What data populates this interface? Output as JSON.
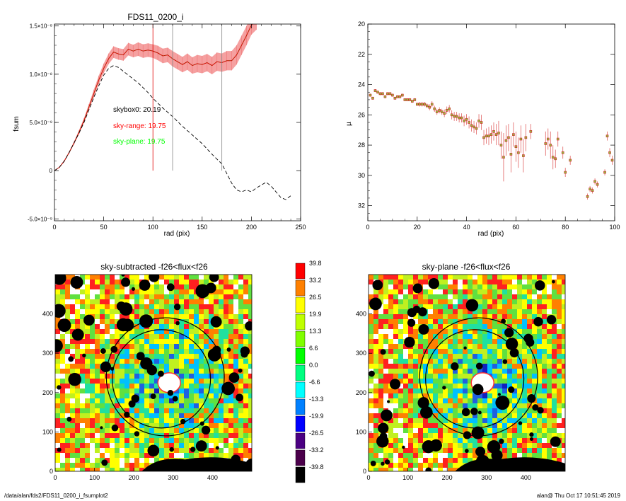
{
  "chart_data": [
    {
      "type": "line",
      "title": "FDS11_0200_i",
      "xlabel": "rad (pix)",
      "ylabel": "fsum",
      "xlim": [
        0,
        250
      ],
      "ylim": [
        -5.2e-09,
        1.52e-08
      ],
      "xticks": [
        0,
        50,
        100,
        150,
        200,
        250
      ],
      "yticks": [
        {
          "value": 1.5e-08,
          "label": "1.5×10⁻⁸"
        },
        {
          "value": 1e-08,
          "label": "1.0×10⁻⁸"
        },
        {
          "value": 5e-09,
          "label": "5.0×10⁻⁹"
        },
        {
          "value": 0,
          "label": "0"
        },
        {
          "value": -5e-09,
          "label": "-5.0×10⁻⁹"
        }
      ],
      "vlines": [
        100,
        120,
        170
      ],
      "annotations": [
        {
          "text": "skybox0: 20.19",
          "color": "#000000"
        },
        {
          "text": "sky-range: 19.75",
          "color": "#ff0000"
        },
        {
          "text": "sky-plane: 19.75",
          "color": "#00ff00"
        }
      ],
      "series": [
        {
          "style": "red-with-pink-errorband",
          "x": [
            0,
            5,
            10,
            15,
            20,
            25,
            30,
            35,
            40,
            45,
            50,
            55,
            60,
            65,
            70,
            75,
            80,
            85,
            90,
            95,
            100,
            105,
            110,
            115,
            120,
            125,
            130,
            135,
            140,
            145,
            150,
            155,
            160,
            165,
            170,
            175,
            180,
            185,
            190,
            195,
            200,
            205
          ],
          "y": [
            0,
            3.5e-10,
            1e-09,
            1.9e-09,
            2.9e-09,
            4e-09,
            5.2e-09,
            6.6e-09,
            8e-09,
            9.4e-09,
            1.06e-08,
            1.16e-08,
            1.23e-08,
            1.21e-08,
            1.2e-08,
            1.26e-08,
            1.24e-08,
            1.26e-08,
            1.24e-08,
            1.25e-08,
            1.24e-08,
            1.22e-08,
            1.19e-08,
            1.2e-08,
            1.16e-08,
            1.13e-08,
            1.1e-08,
            1.13e-08,
            1.09e-08,
            1.11e-08,
            1.1e-08,
            1.12e-08,
            1.09e-08,
            1.13e-08,
            1.12e-08,
            1.14e-08,
            1.14e-08,
            1.2e-08,
            1.3e-08,
            1.4e-08,
            1.51e-08,
            1.56e-08
          ],
          "err": [
            0,
            5e-11,
            1e-10,
            1e-10,
            1.5e-10,
            2e-10,
            2.5e-10,
            3e-10,
            4e-10,
            4.5e-10,
            5e-10,
            5.5e-10,
            6e-10,
            6e-10,
            6e-10,
            6.5e-10,
            6.5e-10,
            7e-10,
            7e-10,
            7e-10,
            7e-10,
            7.5e-10,
            7.5e-10,
            7.5e-10,
            8e-10,
            8e-10,
            8e-10,
            8.5e-10,
            8.5e-10,
            9e-10,
            9e-10,
            9e-10,
            9e-10,
            9.5e-10,
            9.5e-10,
            1e-09,
            1e-09,
            1e-09,
            1e-09,
            1e-09,
            1e-09,
            1e-09
          ]
        },
        {
          "style": "black-dashed",
          "x": [
            0,
            5,
            10,
            15,
            20,
            25,
            30,
            35,
            40,
            45,
            50,
            55,
            60,
            65,
            70,
            75,
            80,
            85,
            90,
            95,
            100,
            110,
            120,
            130,
            140,
            150,
            160,
            170,
            175,
            180,
            185,
            190,
            195,
            200,
            205,
            210,
            215,
            220,
            225,
            230,
            235,
            240
          ],
          "y": [
            0,
            3.5e-10,
            1e-09,
            1.9e-09,
            2.9e-09,
            3.9e-09,
            5e-09,
            6.3e-09,
            7.6e-09,
            8.8e-09,
            9.9e-09,
            1.06e-08,
            1.09e-08,
            1.07e-08,
            1.03e-08,
            9.9e-09,
            9.5e-09,
            9.1e-09,
            8.6e-09,
            8.1e-09,
            7.5e-09,
            6.5e-09,
            5.6e-09,
            4.6e-09,
            3.7e-09,
            2.8e-09,
            1.7e-09,
            7e-10,
            -3e-10,
            -1.3e-09,
            -2e-09,
            -2.2e-09,
            -2e-09,
            -2.2e-09,
            -1.8e-09,
            -1.5e-09,
            -1.2e-09,
            -1.6e-09,
            -2.2e-09,
            -2.8e-09,
            -3e-09,
            -2.6e-09
          ]
        }
      ]
    },
    {
      "type": "scatter",
      "xlabel": "rad (pix)",
      "ylabel": "µ",
      "xlim": [
        0,
        100
      ],
      "ylim": [
        20,
        33
      ],
      "y_inverted": true,
      "xticks": [
        0,
        20,
        40,
        60,
        80,
        100
      ],
      "yticks": [
        20,
        22,
        24,
        26,
        28,
        30,
        32
      ],
      "points_x": [
        1,
        2,
        3,
        4,
        5,
        6,
        7,
        8,
        9,
        10,
        11,
        12,
        13,
        14,
        15,
        16,
        17,
        18,
        19,
        20,
        21,
        22,
        23,
        24,
        25,
        26,
        27,
        28,
        29,
        30,
        31,
        32,
        33,
        34,
        35,
        36,
        37,
        38,
        39,
        40,
        41,
        42,
        43,
        44,
        45,
        46,
        47,
        48,
        49,
        50,
        51,
        52,
        53,
        54,
        55,
        56,
        57,
        58,
        59,
        60,
        61,
        62,
        63,
        64,
        66,
        72,
        73,
        74,
        75,
        76,
        77,
        79,
        80,
        82,
        89,
        90,
        91,
        92,
        93,
        96,
        97,
        98,
        99
      ],
      "points_y": [
        24.7,
        24.9,
        24.4,
        24.5,
        24.6,
        24.6,
        24.8,
        24.6,
        24.6,
        24.7,
        24.9,
        24.8,
        24.8,
        24.7,
        25.0,
        25.0,
        25.0,
        25.1,
        25.0,
        25.3,
        25.3,
        25.3,
        25.3,
        25.4,
        25.5,
        25.3,
        25.6,
        25.8,
        25.7,
        25.8,
        25.9,
        25.7,
        25.6,
        26.0,
        26.1,
        26.1,
        26.2,
        26.2,
        26.4,
        26.3,
        26.5,
        26.7,
        26.8,
        26.9,
        26.4,
        26.5,
        27.5,
        27.4,
        27.4,
        27.3,
        27.1,
        27.3,
        27.2,
        28.0,
        28.8,
        27.7,
        27.5,
        28.6,
        27.3,
        28.1,
        28.5,
        27.6,
        28.7,
        27.5,
        27.1,
        27.9,
        27.6,
        28.0,
        28.8,
        28.9,
        27.6,
        28.5,
        29.8,
        29.0,
        31.4,
        30.9,
        31.0,
        30.4,
        30.6,
        29.8,
        27.4,
        28.5,
        29.0
      ],
      "errors_y": [
        0.1,
        0.1,
        0.1,
        0.1,
        0.1,
        0.1,
        0.1,
        0.1,
        0.1,
        0.1,
        0.1,
        0.1,
        0.1,
        0.1,
        0.1,
        0.1,
        0.1,
        0.1,
        0.1,
        0.1,
        0.15,
        0.15,
        0.15,
        0.15,
        0.2,
        0.2,
        0.2,
        0.2,
        0.2,
        0.2,
        0.25,
        0.25,
        0.25,
        0.3,
        0.3,
        0.3,
        0.3,
        0.3,
        0.35,
        0.35,
        0.4,
        0.4,
        0.4,
        0.4,
        0.45,
        0.5,
        0.5,
        0.5,
        0.6,
        0.6,
        0.6,
        0.7,
        0.8,
        0.9,
        1.6,
        1.0,
        0.9,
        1.2,
        0.8,
        1.0,
        1.0,
        0.9,
        1.1,
        0.9,
        0.5,
        0.8,
        0.7,
        0.9,
        0.8,
        0.6,
        0.5,
        0.4,
        0.3,
        0.3,
        0.2,
        0.2,
        0.2,
        0.2,
        0.2,
        0.2,
        0.3,
        0.3,
        0.3
      ]
    },
    {
      "type": "heatmap",
      "title": "sky-subtracted -f26<flux<f26",
      "xlim": [
        0,
        500
      ],
      "ylim": [
        0,
        500
      ],
      "xticks": [
        0,
        100,
        200,
        300,
        400
      ],
      "yticks": [
        0,
        100,
        200,
        300,
        400
      ],
      "ellipses": [
        {
          "cx": 280,
          "cy": 240,
          "r": 150
        },
        {
          "cx": 270,
          "cy": 235,
          "r": 125
        }
      ]
    },
    {
      "type": "heatmap",
      "title": "sky-plane -f26<flux<f26",
      "xlim": [
        0,
        500
      ],
      "ylim": [
        0,
        500
      ],
      "xticks": [
        0,
        100,
        200,
        300,
        400
      ],
      "yticks": [
        0,
        100,
        200,
        300,
        400
      ],
      "ellipses": [
        {
          "cx": 280,
          "cy": 240,
          "r": 150
        },
        {
          "cx": 270,
          "cy": 235,
          "r": 125
        }
      ]
    }
  ],
  "colorbar": {
    "labels": [
      "39.8",
      "33.2",
      "26.5",
      "19.9",
      "13.3",
      "6.6",
      "0.0",
      "-6.6",
      "-13.3",
      "-19.9",
      "-26.5",
      "-33.2",
      "-39.8"
    ],
    "colors": [
      "#ff0000",
      "#ff8000",
      "#ffff00",
      "#bfff00",
      "#80ff00",
      "#00ff00",
      "#00ff80",
      "#00ffff",
      "#0080ff",
      "#0000ff",
      "#4b0082",
      "#4b004b",
      "#000000"
    ]
  },
  "footer": {
    "left": "/data/alan/fds2/FDS11_0200_i_fsumplot2",
    "right": "alan@  Thu Oct 17 10:51:45 2019"
  }
}
